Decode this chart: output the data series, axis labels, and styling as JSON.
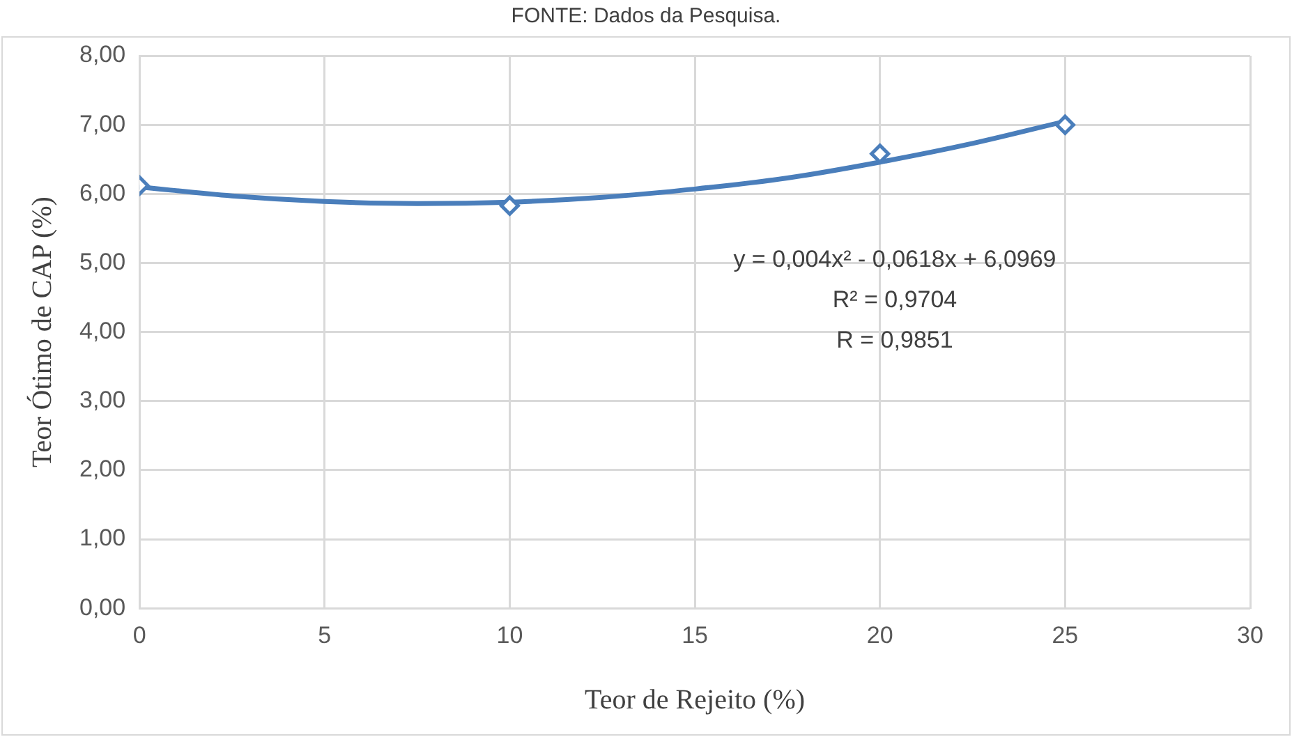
{
  "chart_data": {
    "type": "scatter",
    "xlabel": "Teor de Rejeito (%)",
    "ylabel": "Teor Ótimo de CAP (%)",
    "annotations": [
      "FONTE: Dados da Pesquisa.",
      "y = 0,004x² - 0,0618x + 6,0969",
      "R² = 0,9704",
      "R = 0,9851"
    ],
    "x": [
      0,
      10,
      20,
      25
    ],
    "series": [
      {
        "color": "#4a7ebb",
        "marker": "diamond",
        "values": [
          6.12,
          5.83,
          6.58,
          7.0
        ]
      },
      {
        "type": "line",
        "color": "#4a7ebb",
        "marker": "none",
        "x": [
          0,
          2.5,
          5,
          7.5,
          10,
          12.5,
          15,
          17.5,
          20,
          22.5,
          25
        ],
        "values": [
          6.1,
          5.97,
          5.89,
          5.86,
          5.88,
          5.95,
          6.07,
          6.23,
          6.46,
          6.73,
          7.05
        ]
      }
    ],
    "xlim": [
      0,
      30
    ],
    "xticks": [
      0,
      5,
      10,
      15,
      20,
      25,
      30
    ],
    "ylim": [
      0,
      8
    ],
    "yticks": [
      {
        "value": 0,
        "label": "0,00"
      },
      {
        "value": 1,
        "label": "1,00"
      },
      {
        "value": 2,
        "label": "2,00"
      },
      {
        "value": 3,
        "label": "3,00"
      },
      {
        "value": 4,
        "label": "4,00"
      },
      {
        "value": 5,
        "label": "5,00"
      },
      {
        "value": 6,
        "label": "6,00"
      },
      {
        "value": 7,
        "label": "7,00"
      },
      {
        "value": 8,
        "label": "8,00"
      }
    ],
    "grid": true,
    "legend": false
  }
}
